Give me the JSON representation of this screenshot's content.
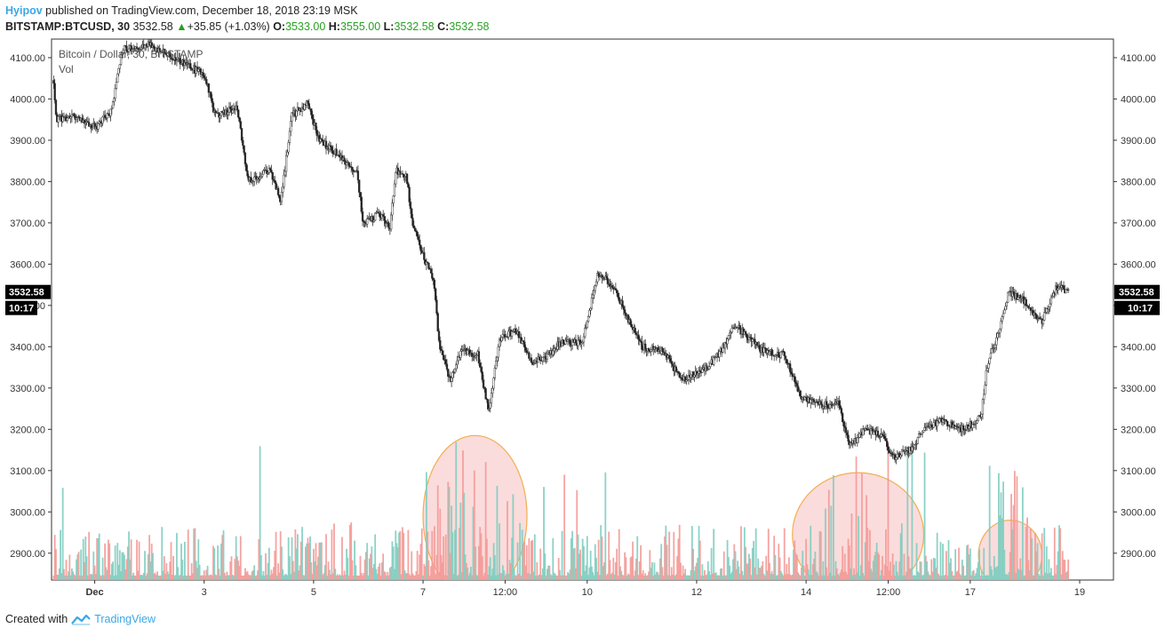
{
  "header": {
    "publisher": "Hyipov",
    "published_text": "published on TradingView.com, December 18, 2018 23:19 MSK",
    "symbol": "BITSTAMP:BTCUSD, 30",
    "last": "3532.58",
    "change": "+35.85 (+1.03%)",
    "o_label": "O:",
    "o_value": "3533.00",
    "h_label": "H:",
    "h_value": "3555.00",
    "l_label": "L:",
    "l_value": "3532.58",
    "c_label": "C:",
    "c_value": "3532.58"
  },
  "legend": {
    "series": "Bitcoin / Dollar, 30, BITSTAMP",
    "volume": "Vol"
  },
  "price_tag": {
    "price": "3532.58",
    "countdown": "10:17"
  },
  "footer": {
    "created_with": "Created with",
    "brand": "TradingView"
  },
  "colors": {
    "up": "#7fcdc0",
    "down": "#f39a97",
    "candle": "#333333",
    "ellipse_fill": "#fbd6d6",
    "ellipse_stroke": "#f0a030",
    "axis": "#333333"
  },
  "chart_data": {
    "type": "candlestick",
    "symbol": "BITSTAMP:BTCUSD",
    "timeframe": "30",
    "yaxis_ticks": [
      "4100.00",
      "4000.00",
      "3900.00",
      "3800.00",
      "3700.00",
      "3600.00",
      "3500.00",
      "3400.00",
      "3300.00",
      "3200.00",
      "3100.00",
      "3000.00",
      "2900.00"
    ],
    "ylim": [
      2835,
      4145
    ],
    "xaxis_ticks": [
      "Dec",
      "3",
      "5",
      "7",
      "12:00",
      "10",
      "12",
      "14",
      "12:00",
      "17",
      "19"
    ],
    "x_range_days": [
      0,
      19
    ],
    "x_tick_positions_days": [
      1.0,
      3.0,
      5.0,
      7.0,
      8.5,
      10.0,
      12.0,
      14.0,
      15.5,
      17.0,
      19.0
    ],
    "price_path": [
      {
        "day": 0.2,
        "price": 4140
      },
      {
        "day": 0.3,
        "price": 3950
      },
      {
        "day": 0.6,
        "price": 3960
      },
      {
        "day": 1.0,
        "price": 3930
      },
      {
        "day": 1.3,
        "price": 3970
      },
      {
        "day": 1.5,
        "price": 4120
      },
      {
        "day": 2.0,
        "price": 4130
      },
      {
        "day": 2.7,
        "price": 4080
      },
      {
        "day": 3.0,
        "price": 4060
      },
      {
        "day": 3.2,
        "price": 3960
      },
      {
        "day": 3.6,
        "price": 3980
      },
      {
        "day": 3.8,
        "price": 3800
      },
      {
        "day": 4.2,
        "price": 3830
      },
      {
        "day": 4.4,
        "price": 3750
      },
      {
        "day": 4.6,
        "price": 3960
      },
      {
        "day": 4.9,
        "price": 3990
      },
      {
        "day": 5.1,
        "price": 3900
      },
      {
        "day": 5.5,
        "price": 3860
      },
      {
        "day": 5.8,
        "price": 3820
      },
      {
        "day": 5.9,
        "price": 3700
      },
      {
        "day": 6.2,
        "price": 3720
      },
      {
        "day": 6.4,
        "price": 3690
      },
      {
        "day": 6.5,
        "price": 3830
      },
      {
        "day": 6.7,
        "price": 3810
      },
      {
        "day": 6.8,
        "price": 3700
      },
      {
        "day": 7.0,
        "price": 3620
      },
      {
        "day": 7.2,
        "price": 3560
      },
      {
        "day": 7.3,
        "price": 3400
      },
      {
        "day": 7.5,
        "price": 3320
      },
      {
        "day": 7.7,
        "price": 3390
      },
      {
        "day": 8.0,
        "price": 3380
      },
      {
        "day": 8.2,
        "price": 3240
      },
      {
        "day": 8.4,
        "price": 3420
      },
      {
        "day": 8.7,
        "price": 3440
      },
      {
        "day": 9.0,
        "price": 3360
      },
      {
        "day": 9.3,
        "price": 3380
      },
      {
        "day": 9.5,
        "price": 3410
      },
      {
        "day": 9.9,
        "price": 3410
      },
      {
        "day": 10.2,
        "price": 3580
      },
      {
        "day": 10.5,
        "price": 3540
      },
      {
        "day": 10.7,
        "price": 3480
      },
      {
        "day": 11.0,
        "price": 3400
      },
      {
        "day": 11.4,
        "price": 3390
      },
      {
        "day": 11.7,
        "price": 3320
      },
      {
        "day": 12.1,
        "price": 3340
      },
      {
        "day": 12.4,
        "price": 3380
      },
      {
        "day": 12.7,
        "price": 3450
      },
      {
        "day": 12.9,
        "price": 3430
      },
      {
        "day": 13.2,
        "price": 3390
      },
      {
        "day": 13.6,
        "price": 3380
      },
      {
        "day": 13.9,
        "price": 3280
      },
      {
        "day": 14.2,
        "price": 3260
      },
      {
        "day": 14.6,
        "price": 3260
      },
      {
        "day": 14.8,
        "price": 3160
      },
      {
        "day": 15.1,
        "price": 3200
      },
      {
        "day": 15.4,
        "price": 3180
      },
      {
        "day": 15.6,
        "price": 3130
      },
      {
        "day": 15.9,
        "price": 3150
      },
      {
        "day": 16.2,
        "price": 3210
      },
      {
        "day": 16.5,
        "price": 3220
      },
      {
        "day": 16.9,
        "price": 3200
      },
      {
        "day": 17.2,
        "price": 3230
      },
      {
        "day": 17.3,
        "price": 3350
      },
      {
        "day": 17.5,
        "price": 3430
      },
      {
        "day": 17.7,
        "price": 3530
      },
      {
        "day": 18.0,
        "price": 3510
      },
      {
        "day": 18.3,
        "price": 3460
      },
      {
        "day": 18.6,
        "price": 3550
      },
      {
        "day": 18.8,
        "price": 3532
      }
    ],
    "volume_highlights": [
      {
        "day_center": 7.95,
        "price_center": 2990,
        "day_radius": 0.95,
        "price_radius": 195
      },
      {
        "day_center": 14.95,
        "price_center": 2945,
        "day_radius": 1.2,
        "price_radius": 150
      },
      {
        "day_center": 17.73,
        "price_center": 2895,
        "day_radius": 0.58,
        "price_radius": 85
      }
    ],
    "last_price": 3532.58
  }
}
